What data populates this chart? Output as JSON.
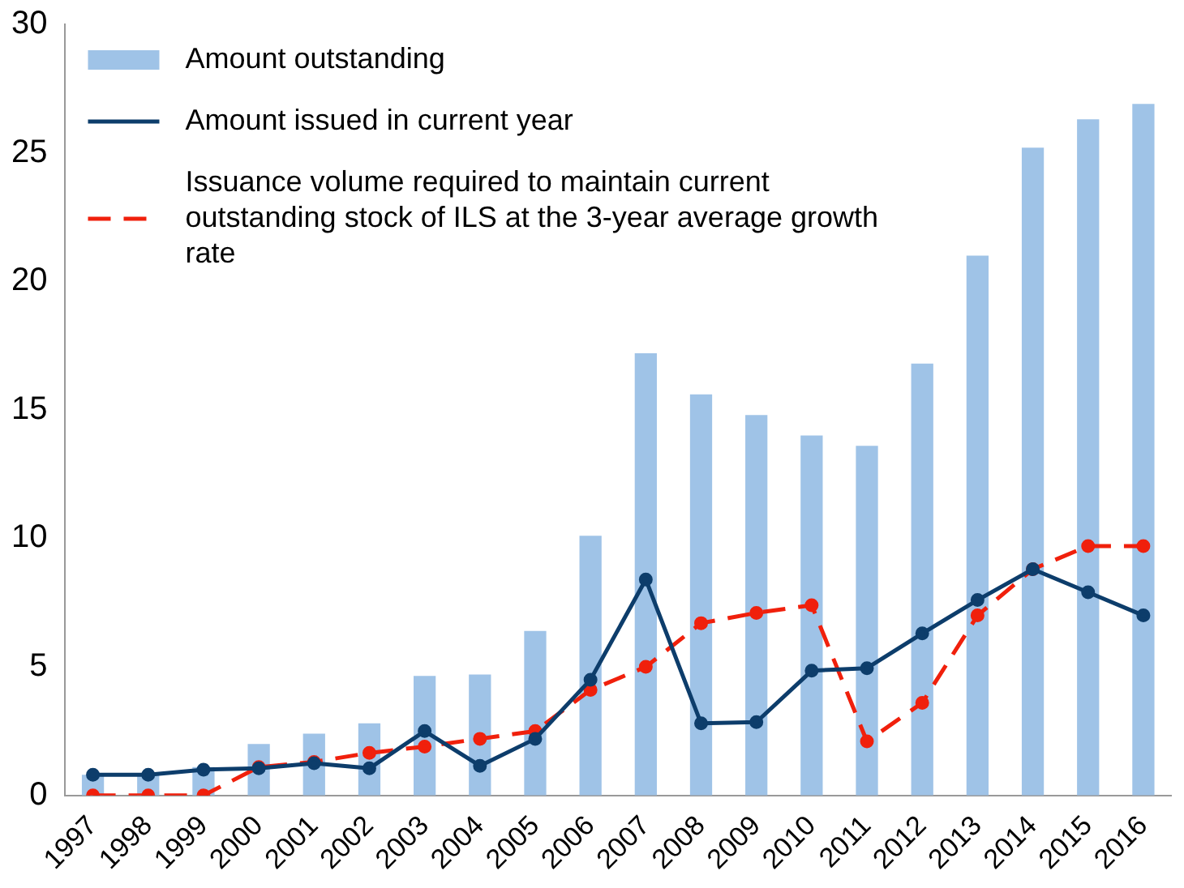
{
  "chart_data": {
    "type": "bar",
    "categories": [
      "1997",
      "1998",
      "1999",
      "2000",
      "2001",
      "2002",
      "2003",
      "2004",
      "2005",
      "2006",
      "2007",
      "2008",
      "2009",
      "2010",
      "2011",
      "2012",
      "2013",
      "2014",
      "2015",
      "2016"
    ],
    "series": [
      {
        "name": "Amount outstanding",
        "color": "#9fc3e7",
        "values": [
          0.8,
          0.8,
          1.1,
          2.0,
          2.4,
          2.8,
          4.65,
          4.7,
          6.4,
          10.1,
          17.2,
          15.6,
          14.8,
          14.0,
          13.6,
          16.8,
          21.0,
          25.2,
          26.3,
          26.9
        ]
      },
      {
        "name": "Amount issued in current year",
        "type": "line",
        "color": "#0d3d6b",
        "line_style": "solid",
        "values": [
          0.8,
          0.8,
          1.0,
          1.05,
          1.25,
          1.05,
          2.5,
          1.15,
          2.2,
          4.5,
          8.4,
          2.8,
          2.85,
          4.85,
          4.95,
          6.3,
          7.6,
          8.8,
          7.9,
          7.0
        ]
      },
      {
        "name": "Issuance volume required to maintain current outstanding stock of ILS at the 3-year average growth rate",
        "type": "line",
        "color": "#f0200c",
        "line_style": "dashed",
        "values": [
          0,
          0,
          0,
          1.1,
          1.3,
          1.65,
          1.9,
          2.2,
          2.5,
          4.1,
          5.0,
          6.7,
          7.1,
          7.4,
          2.1,
          3.6,
          7.0,
          8.8,
          9.7,
          9.7
        ]
      }
    ],
    "ylim": [
      0,
      30
    ],
    "yticks": [
      0,
      5,
      10,
      15,
      20,
      25,
      30
    ],
    "grid": false,
    "legend": "top left",
    "marker": "circle"
  }
}
